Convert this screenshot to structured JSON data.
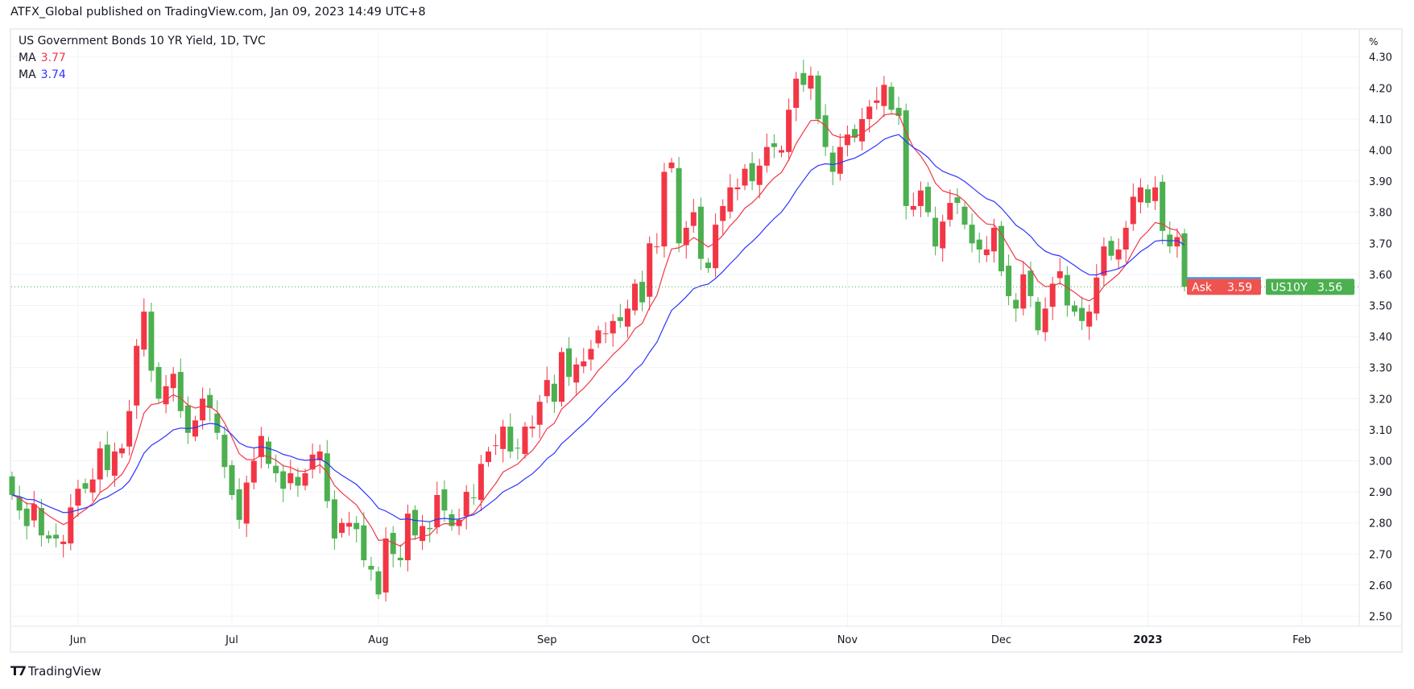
{
  "header": {
    "published": "ATFX_Global published on TradingView.com, Jan 09, 2023 14:49 UTC+8"
  },
  "legend": {
    "title": "US Government Bonds 10 YR Yield, 1D, TVC",
    "ma1_label": "MA",
    "ma1_value": "3.77",
    "ma2_label": "MA",
    "ma2_value": "3.74"
  },
  "footer": {
    "brand": "TradingView"
  },
  "colors": {
    "up": "#f23645",
    "down": "#4caf50",
    "ma_fast": "#f23645",
    "ma_slow": "#2c33ff",
    "grid": "#f0f3fa"
  },
  "chart_data": {
    "type": "candlestick",
    "title": "US Government Bonds 10 YR Yield, 1D, TVC",
    "y_unit": "%",
    "ylim": [
      2.5,
      4.3
    ],
    "y_ticks": [
      "2.50",
      "2.60",
      "2.70",
      "2.80",
      "2.90",
      "3.00",
      "3.10",
      "3.20",
      "3.30",
      "3.40",
      "3.50",
      "3.60",
      "3.70",
      "3.80",
      "3.90",
      "4.00",
      "4.10",
      "4.20",
      "4.30"
    ],
    "x_labels": [
      {
        "label": "Jun",
        "index": 9
      },
      {
        "label": "Jul",
        "index": 30
      },
      {
        "label": "Aug",
        "index": 50
      },
      {
        "label": "Sep",
        "index": 73
      },
      {
        "label": "Oct",
        "index": 94
      },
      {
        "label": "Nov",
        "index": 114
      },
      {
        "label": "Dec",
        "index": 135
      },
      {
        "label": "2023",
        "index": 155
      },
      {
        "label": "Feb",
        "index": 176
      }
    ],
    "ma_periods": [
      9,
      20
    ],
    "first_open": 2.95,
    "closes": [
      2.89,
      2.84,
      2.79,
      2.86,
      2.76,
      2.75,
      2.75,
      2.74,
      2.85,
      2.91,
      2.91,
      2.94,
      3.04,
      2.97,
      3.03,
      3.04,
      3.16,
      3.37,
      3.48,
      3.29,
      3.2,
      3.24,
      3.28,
      3.16,
      3.09,
      3.13,
      3.2,
      3.17,
      3.09,
      2.98,
      2.89,
      2.81,
      2.93,
      3.0,
      3.08,
      2.99,
      2.96,
      2.91,
      2.96,
      2.92,
      2.96,
      3.02,
      3.03,
      2.87,
      2.75,
      2.8,
      2.8,
      2.78,
      2.68,
      2.65,
      2.57,
      2.75,
      2.7,
      2.68,
      2.83,
      2.76,
      2.79,
      2.78,
      2.89,
      2.84,
      2.79,
      2.81,
      2.9,
      2.88,
      2.99,
      3.03,
      3.05,
      3.11,
      3.03,
      3.04,
      3.11,
      3.11,
      3.19,
      3.26,
      3.19,
      3.35,
      3.27,
      3.31,
      3.32,
      3.36,
      3.42,
      3.41,
      3.45,
      3.45,
      3.49,
      3.57,
      3.51,
      3.7,
      3.69,
      3.93,
      3.96,
      3.7,
      3.75,
      3.8,
      3.65,
      3.62,
      3.76,
      3.82,
      3.88,
      3.88,
      3.94,
      3.9,
      3.95,
      4.01,
      4.01,
      4.0,
      4.13,
      4.23,
      4.21,
      4.24,
      4.1,
      4.01,
      3.93,
      4.01,
      4.05,
      4.04,
      4.1,
      4.14,
      4.16,
      4.21,
      4.13,
      4.11,
      3.82,
      3.82,
      3.87,
      3.8,
      3.69,
      3.77,
      3.83,
      3.83,
      3.76,
      3.7,
      3.68,
      3.68,
      3.75,
      3.61,
      3.53,
      3.49,
      3.6,
      3.53,
      3.42,
      3.49,
      3.57,
      3.61,
      3.5,
      3.48,
      3.45,
      3.48,
      3.59,
      3.69,
      3.66,
      3.68,
      3.75,
      3.85,
      3.88,
      3.83,
      3.88,
      3.74,
      3.69,
      3.72,
      3.56
    ],
    "last_price": {
      "symbol": "US10Y",
      "value": "3.56"
    },
    "ask": {
      "label": "Ask",
      "value": "3.59"
    }
  }
}
